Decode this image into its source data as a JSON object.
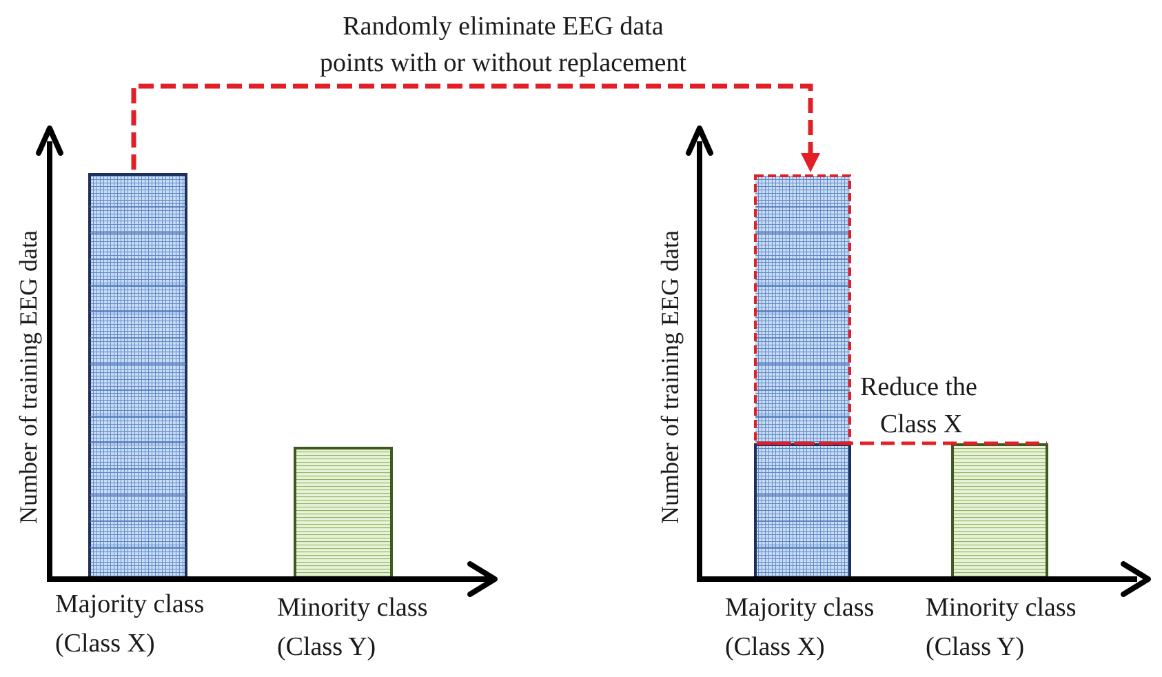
{
  "top_caption": {
    "line1": "Randomly eliminate EEG data",
    "line2": "points with or without replacement"
  },
  "left_panel": {
    "y_axis_label": "Number of training  EEG data",
    "bars": [
      {
        "label_line1": "Majority class",
        "label_line2": "(Class X)",
        "relative_height": 1.0
      },
      {
        "label_line1": "Minority class",
        "label_line2": "(Class Y)",
        "relative_height": 0.32
      }
    ]
  },
  "right_panel": {
    "y_axis_label": "Number of training  EEG data",
    "bars": [
      {
        "label_line1": "Majority class",
        "label_line2": "(Class X)",
        "relative_height": 0.33,
        "removed_relative_height": 1.0
      },
      {
        "label_line1": "Minority class",
        "label_line2": "(Class Y)",
        "relative_height": 0.33
      }
    ],
    "annotation": {
      "line1": "Reduce the",
      "line2": "Class X"
    }
  },
  "colors": {
    "majority_border": "#1f2f5c",
    "majority_fill": "#c9dcf3",
    "majority_grid": "#5a86c8",
    "minority_border": "#3f5a1e",
    "minority_fill": "#e8f2d8",
    "minority_lines": "#8fb360",
    "dashed_red": "#e21f26",
    "axis": "#000000"
  }
}
